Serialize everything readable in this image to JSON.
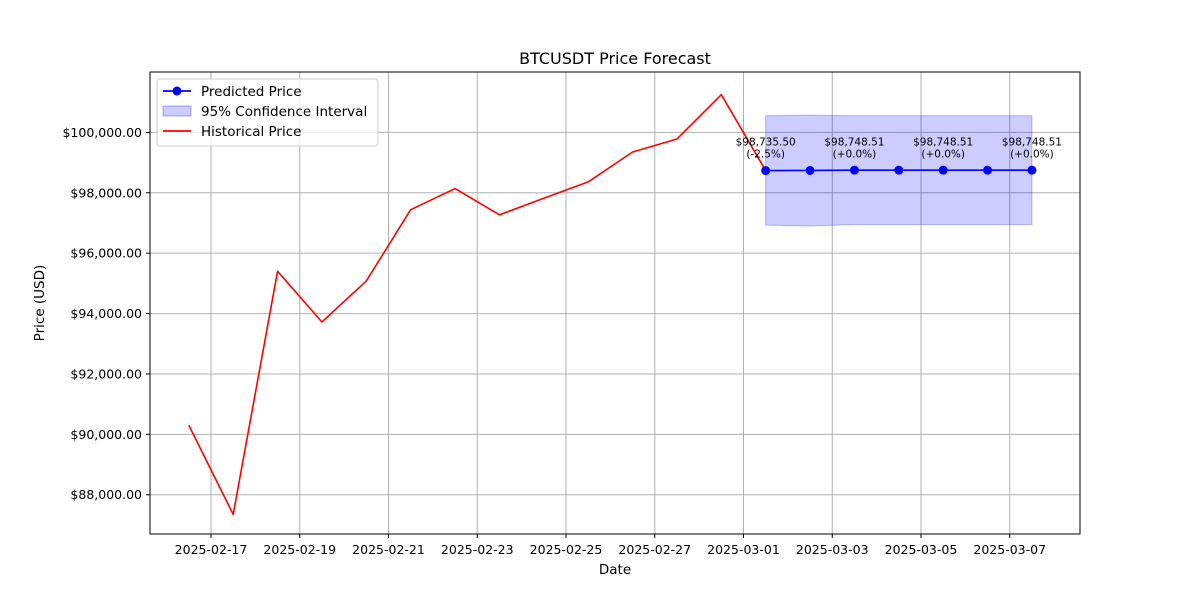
{
  "chart_data": {
    "type": "line",
    "title": "BTCUSDT Price Forecast",
    "xlabel": "Date",
    "ylabel": "Price (USD)",
    "xlim": [
      "2025-02-15T15:00",
      "2025-03-08T14:00"
    ],
    "ylim": [
      86700,
      102000
    ],
    "grid": true,
    "legend_position": "top-left",
    "x_ticks": [
      "2025-02-17",
      "2025-02-19",
      "2025-02-21",
      "2025-02-23",
      "2025-02-25",
      "2025-02-27",
      "2025-03-01",
      "2025-03-03",
      "2025-03-05",
      "2025-03-07"
    ],
    "y_ticks": [
      88000,
      90000,
      92000,
      94000,
      96000,
      98000,
      100000
    ],
    "y_tick_labels": [
      "$88,000.00",
      "$90,000.00",
      "$92,000.00",
      "$94,000.00",
      "$96,000.00",
      "$98,000.00",
      "$100,000.00"
    ],
    "series": [
      {
        "name": "Predicted Price",
        "color": "#0000ff",
        "marker": "circle",
        "x": [
          "2025-03-01T12:00",
          "2025-03-02T12:00",
          "2025-03-03T12:00",
          "2025-03-04T12:00",
          "2025-03-05T12:00",
          "2025-03-06T12:00",
          "2025-03-07T12:00"
        ],
        "y": [
          98735.5,
          98740,
          98748.51,
          98748.51,
          98748.51,
          98748.51,
          98748.51
        ]
      },
      {
        "name": "95% Confidence Interval",
        "type": "band",
        "color": "#0000ff",
        "opacity": 0.2,
        "x": [
          "2025-03-01T12:00",
          "2025-03-02T12:00",
          "2025-03-03T12:00",
          "2025-03-04T12:00",
          "2025-03-05T12:00",
          "2025-03-06T12:00",
          "2025-03-07T12:00"
        ],
        "upper": [
          100550,
          100570,
          100550,
          100550,
          100550,
          100550,
          100550
        ],
        "lower": [
          96930,
          96900,
          96950,
          96950,
          96950,
          96950,
          96950
        ]
      },
      {
        "name": "Historical Price",
        "color": "#ff0000",
        "x": [
          "2025-02-16T12:00",
          "2025-02-17T12:00",
          "2025-02-18T12:00",
          "2025-02-19T12:00",
          "2025-02-20T12:00",
          "2025-02-21T12:00",
          "2025-02-22T12:00",
          "2025-02-23T12:00",
          "2025-02-24T12:00",
          "2025-02-25T12:00",
          "2025-02-26T12:00",
          "2025-02-27T12:00",
          "2025-02-28T12:00",
          "2025-03-01T12:00"
        ],
        "y": [
          90300,
          87350,
          95400,
          93720,
          95080,
          97440,
          98140,
          97270,
          97820,
          98360,
          99350,
          99780,
          101250,
          98735.5
        ]
      }
    ],
    "annotations": [
      {
        "x": "2025-03-01T12:00",
        "price": "$98,735.50",
        "change": "(-2.5%)"
      },
      {
        "x": "2025-03-03T12:00",
        "price": "$98,748.51",
        "change": "(+0.0%)"
      },
      {
        "x": "2025-03-05T12:00",
        "price": "$98,748.51",
        "change": "(+0.0%)"
      },
      {
        "x": "2025-03-07T12:00",
        "price": "$98,748.51",
        "change": "(+0.0%)"
      }
    ]
  }
}
